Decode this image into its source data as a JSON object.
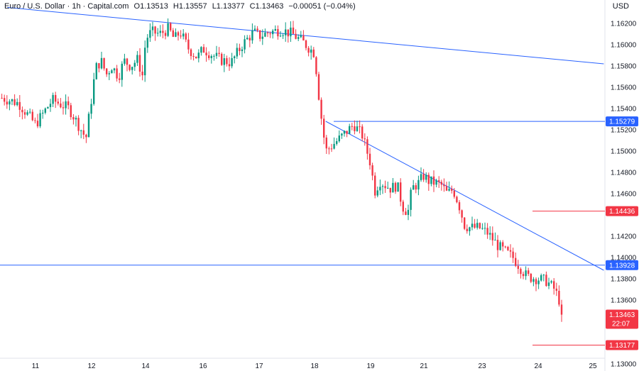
{
  "header": {
    "symbol": "Euro / U.S. Dollar · 1h · Capital.com",
    "open": "O1.13513",
    "high": "H1.13557",
    "low": "L1.13377",
    "close": "C1.13463",
    "change": "−0.00051 (−0.04%)"
  },
  "currency": "USD",
  "chart_data": {
    "type": "candlestick",
    "y_ticks": [
      "1.16200",
      "1.16000",
      "1.15800",
      "1.15600",
      "1.15400",
      "1.15200",
      "1.15000",
      "1.14800",
      "1.14600",
      "1.14200",
      "1.14000",
      "1.13800",
      "1.13600",
      "1.13000"
    ],
    "ylim": [
      1.129,
      1.165
    ],
    "x_ticks": [
      {
        "label": "11",
        "day": 11
      },
      {
        "label": "12",
        "day": 12
      },
      {
        "label": "14",
        "day": 14
      },
      {
        "label": "16",
        "day": 16
      },
      {
        "label": "17",
        "day": 17
      },
      {
        "label": "18",
        "day": 18
      },
      {
        "label": "19",
        "day": 19
      },
      {
        "label": "21",
        "day": 21
      },
      {
        "label": "23",
        "day": 23
      },
      {
        "label": "24",
        "day": 24
      },
      {
        "label": "25",
        "day": 25
      }
    ],
    "levels": [
      {
        "value": "1.15279",
        "price": 1.15279,
        "color": "#2962ff",
        "style": "blue"
      },
      {
        "value": "1.14436",
        "price": 1.14436,
        "color": "#f23645",
        "style": "red"
      },
      {
        "value": "1.13928",
        "price": 1.13928,
        "color": "#2962ff",
        "style": "blue"
      },
      {
        "value": "1.13177",
        "price": 1.13177,
        "color": "#f23645",
        "style": "red"
      }
    ],
    "current_price": {
      "value": "1.13463",
      "countdown": "22:07",
      "color": "#f23645"
    },
    "trendlines": [
      {
        "from": [
          10.5,
          1.1635
        ],
        "to": [
          25.2,
          1.1582
        ]
      },
      {
        "from": [
          18.2,
          1.1528
        ],
        "to": [
          25.2,
          1.1388
        ]
      }
    ],
    "close_path": [
      [
        10.4,
        1.155
      ],
      [
        10.7,
        1.1545
      ],
      [
        11.0,
        1.1525
      ],
      [
        11.3,
        1.1548
      ],
      [
        11.6,
        1.154
      ],
      [
        11.9,
        1.1512
      ],
      [
        12.0,
        1.155
      ],
      [
        12.15,
        1.1578
      ],
      [
        12.35,
        1.1585
      ],
      [
        12.55,
        1.1572
      ],
      [
        12.75,
        1.158
      ],
      [
        13.0,
        1.157
      ],
      [
        13.2,
        1.1585
      ],
      [
        13.45,
        1.158
      ],
      [
        13.7,
        1.1586
      ],
      [
        13.9,
        1.157
      ],
      [
        14.0,
        1.1605
      ],
      [
        14.2,
        1.1612
      ],
      [
        14.5,
        1.161
      ],
      [
        14.8,
        1.1615
      ],
      [
        15.0,
        1.1605
      ],
      [
        15.2,
        1.1612
      ],
      [
        15.5,
        1.1596
      ],
      [
        15.8,
        1.1588
      ],
      [
        16.0,
        1.1596
      ],
      [
        16.3,
        1.1586
      ],
      [
        16.5,
        1.1583
      ],
      [
        16.7,
        1.16
      ],
      [
        16.9,
        1.1612
      ],
      [
        17.0,
        1.1608
      ],
      [
        17.2,
        1.1612
      ],
      [
        17.4,
        1.1614
      ],
      [
        17.6,
        1.161
      ],
      [
        17.8,
        1.1602
      ],
      [
        18.0,
        1.1592
      ],
      [
        18.1,
        1.154
      ],
      [
        18.2,
        1.15
      ],
      [
        18.45,
        1.1512
      ],
      [
        18.7,
        1.1525
      ],
      [
        18.85,
        1.1515
      ],
      [
        19.0,
        1.1488
      ],
      [
        19.15,
        1.1462
      ],
      [
        19.35,
        1.1472
      ],
      [
        19.55,
        1.1468
      ],
      [
        19.75,
        1.1465
      ],
      [
        20.0,
        1.1468
      ],
      [
        20.2,
        1.1448
      ],
      [
        20.4,
        1.1442
      ],
      [
        20.55,
        1.1465
      ],
      [
        20.8,
        1.147
      ],
      [
        21.0,
        1.1477
      ],
      [
        21.15,
        1.1472
      ],
      [
        21.4,
        1.147
      ],
      [
        21.6,
        1.1468
      ],
      [
        21.8,
        1.146
      ],
      [
        22.0,
        1.1464
      ],
      [
        22.2,
        1.145
      ],
      [
        22.4,
        1.143
      ],
      [
        22.6,
        1.1428
      ],
      [
        22.9,
        1.1428
      ],
      [
        23.1,
        1.1423
      ],
      [
        23.3,
        1.141
      ],
      [
        23.55,
        1.14
      ],
      [
        23.8,
        1.1382
      ],
      [
        24.0,
        1.138
      ],
      [
        24.15,
        1.1378
      ],
      [
        24.3,
        1.137
      ],
      [
        24.4,
        1.1358
      ],
      [
        24.45,
        1.1346
      ]
    ]
  }
}
